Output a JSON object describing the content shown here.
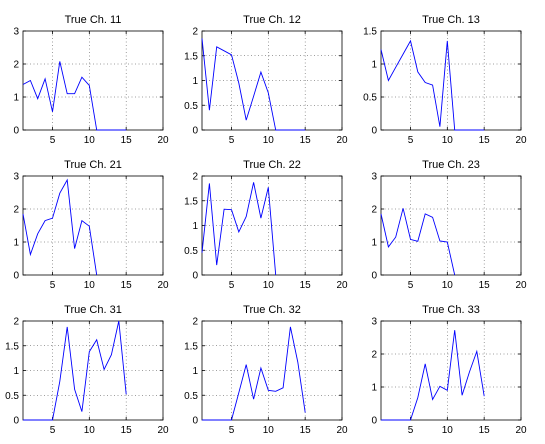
{
  "chart_data": [
    {
      "type": "line",
      "title": "True Ch. 11",
      "xlim": [
        1,
        20
      ],
      "ylim": [
        0,
        3
      ],
      "xticks": [
        5,
        10,
        15,
        20
      ],
      "xtick_labels": [
        "5",
        "10",
        "15",
        "20"
      ],
      "yticks": [
        0,
        1,
        2,
        3
      ],
      "ytick_labels": [
        "0",
        "1",
        "2",
        "3"
      ],
      "grid": true,
      "series": [
        {
          "x": [
            1,
            2,
            3,
            4,
            5,
            6,
            7,
            8,
            9,
            10,
            11,
            12,
            13,
            14,
            15
          ],
          "values": [
            1.38,
            1.5,
            0.95,
            1.55,
            0.55,
            2.08,
            1.1,
            1.1,
            1.6,
            1.35,
            0,
            0,
            0,
            0,
            0
          ]
        }
      ]
    },
    {
      "type": "line",
      "title": "True Ch. 12",
      "xlim": [
        1,
        20
      ],
      "ylim": [
        0,
        2
      ],
      "xticks": [
        5,
        10,
        15,
        20
      ],
      "xtick_labels": [
        "5",
        "10",
        "15",
        "20"
      ],
      "yticks": [
        0,
        0.5,
        1,
        1.5,
        2
      ],
      "ytick_labels": [
        "0",
        "0.5",
        "1",
        "1.5",
        "2"
      ],
      "grid": true,
      "series": [
        {
          "x": [
            1,
            2,
            3,
            4,
            5,
            6,
            7,
            8,
            9,
            10,
            11,
            12,
            13,
            14,
            15
          ],
          "values": [
            1.85,
            0.4,
            1.68,
            1.6,
            1.52,
            0.95,
            0.2,
            0.68,
            1.17,
            0.75,
            0,
            0,
            0,
            0,
            0
          ]
        }
      ]
    },
    {
      "type": "line",
      "title": "True Ch. 13",
      "xlim": [
        1,
        20
      ],
      "ylim": [
        0,
        1.5
      ],
      "xticks": [
        5,
        10,
        15,
        20
      ],
      "xtick_labels": [
        "5",
        "10",
        "15",
        "20"
      ],
      "yticks": [
        0,
        0.5,
        1,
        1.5
      ],
      "ytick_labels": [
        "0",
        "0.5",
        "1",
        "1.5"
      ],
      "grid": true,
      "series": [
        {
          "x": [
            1,
            2,
            3,
            4,
            5,
            6,
            7,
            8,
            9,
            10,
            11,
            12,
            13,
            14,
            15
          ],
          "values": [
            1.22,
            0.75,
            0.95,
            1.15,
            1.35,
            0.88,
            0.72,
            0.68,
            0.05,
            1.35,
            0,
            0,
            0,
            0,
            0
          ]
        }
      ]
    },
    {
      "type": "line",
      "title": "True Ch. 21",
      "xlim": [
        1,
        20
      ],
      "ylim": [
        0,
        3
      ],
      "xticks": [
        5,
        10,
        15,
        20
      ],
      "xtick_labels": [
        "5",
        "10",
        "15",
        "20"
      ],
      "yticks": [
        0,
        1,
        2,
        3
      ],
      "ytick_labels": [
        "0",
        "1",
        "2",
        "3"
      ],
      "grid": true,
      "series": [
        {
          "x": [
            1,
            2,
            3,
            4,
            5,
            6,
            7,
            8,
            9,
            10,
            11
          ],
          "values": [
            1.85,
            0.62,
            1.25,
            1.65,
            1.72,
            2.48,
            2.88,
            0.8,
            1.65,
            1.48,
            0
          ]
        }
      ]
    },
    {
      "type": "line",
      "title": "True Ch. 22",
      "xlim": [
        1,
        20
      ],
      "ylim": [
        0,
        2
      ],
      "xticks": [
        5,
        10,
        15,
        20
      ],
      "xtick_labels": [
        "5",
        "10",
        "15",
        "20"
      ],
      "yticks": [
        0,
        0.5,
        1,
        1.5,
        2
      ],
      "ytick_labels": [
        "0",
        "0.5",
        "1",
        "1.5",
        "2"
      ],
      "grid": true,
      "series": [
        {
          "x": [
            1,
            2,
            3,
            4,
            5,
            6,
            7,
            8,
            9,
            10,
            11
          ],
          "values": [
            0.45,
            1.85,
            0.2,
            1.33,
            1.32,
            0.87,
            1.18,
            1.87,
            1.15,
            1.77,
            0
          ]
        }
      ]
    },
    {
      "type": "line",
      "title": "True Ch. 23",
      "xlim": [
        1,
        20
      ],
      "ylim": [
        0,
        3
      ],
      "xticks": [
        5,
        10,
        15,
        20
      ],
      "xtick_labels": [
        "5",
        "10",
        "15",
        "20"
      ],
      "yticks": [
        0,
        1,
        2,
        3
      ],
      "ytick_labels": [
        "0",
        "1",
        "2",
        "3"
      ],
      "grid": true,
      "series": [
        {
          "x": [
            1,
            2,
            3,
            4,
            5,
            6,
            7,
            8,
            9,
            10,
            11
          ],
          "values": [
            1.85,
            0.85,
            1.15,
            2.02,
            1.08,
            1.02,
            1.85,
            1.75,
            1.03,
            1.0,
            0
          ]
        }
      ]
    },
    {
      "type": "line",
      "title": "True Ch. 31",
      "xlim": [
        1,
        20
      ],
      "ylim": [
        0,
        2
      ],
      "xticks": [
        5,
        10,
        15,
        20
      ],
      "xtick_labels": [
        "5",
        "10",
        "15",
        "20"
      ],
      "yticks": [
        0,
        0.5,
        1,
        1.5,
        2
      ],
      "ytick_labels": [
        "0",
        "0.5",
        "1",
        "1.5",
        "2"
      ],
      "grid": true,
      "series": [
        {
          "x": [
            1,
            2,
            3,
            4,
            5,
            6,
            7,
            8,
            9,
            10,
            11,
            12,
            13,
            14,
            15
          ],
          "values": [
            0,
            0,
            0,
            0,
            0,
            0.78,
            1.88,
            0.62,
            0.17,
            1.38,
            1.62,
            1.02,
            1.32,
            2.0,
            0.52
          ]
        }
      ]
    },
    {
      "type": "line",
      "title": "True Ch. 32",
      "xlim": [
        1,
        20
      ],
      "ylim": [
        0,
        2
      ],
      "xticks": [
        5,
        10,
        15,
        20
      ],
      "xtick_labels": [
        "5",
        "10",
        "15",
        "20"
      ],
      "yticks": [
        0,
        0.5,
        1,
        1.5,
        2
      ],
      "ytick_labels": [
        "0",
        "0.5",
        "1",
        "1.5",
        "2"
      ],
      "grid": true,
      "series": [
        {
          "x": [
            1,
            2,
            3,
            4,
            5,
            6,
            7,
            8,
            9,
            10,
            11,
            12,
            13,
            14,
            15
          ],
          "values": [
            0,
            0,
            0,
            0,
            0,
            0.55,
            1.12,
            0.42,
            1.05,
            0.6,
            0.58,
            0.65,
            1.88,
            1.17,
            0.15
          ]
        }
      ]
    },
    {
      "type": "line",
      "title": "True Ch. 33",
      "xlim": [
        1,
        20
      ],
      "ylim": [
        0,
        3
      ],
      "xticks": [
        5,
        10,
        15,
        20
      ],
      "xtick_labels": [
        "5",
        "10",
        "15",
        "20"
      ],
      "yticks": [
        0,
        1,
        2,
        3
      ],
      "ytick_labels": [
        "0",
        "1",
        "2",
        "3"
      ],
      "grid": true,
      "series": [
        {
          "x": [
            1,
            2,
            3,
            4,
            5,
            6,
            7,
            8,
            9,
            10,
            11,
            12,
            13,
            14,
            15
          ],
          "values": [
            0,
            0,
            0,
            0,
            0,
            0.68,
            1.7,
            0.62,
            1.02,
            0.9,
            2.72,
            0.75,
            1.45,
            2.08,
            0.72
          ]
        }
      ]
    }
  ],
  "colors": {
    "line": "#0000ff",
    "axes": "#000000",
    "background": "#ffffff"
  }
}
